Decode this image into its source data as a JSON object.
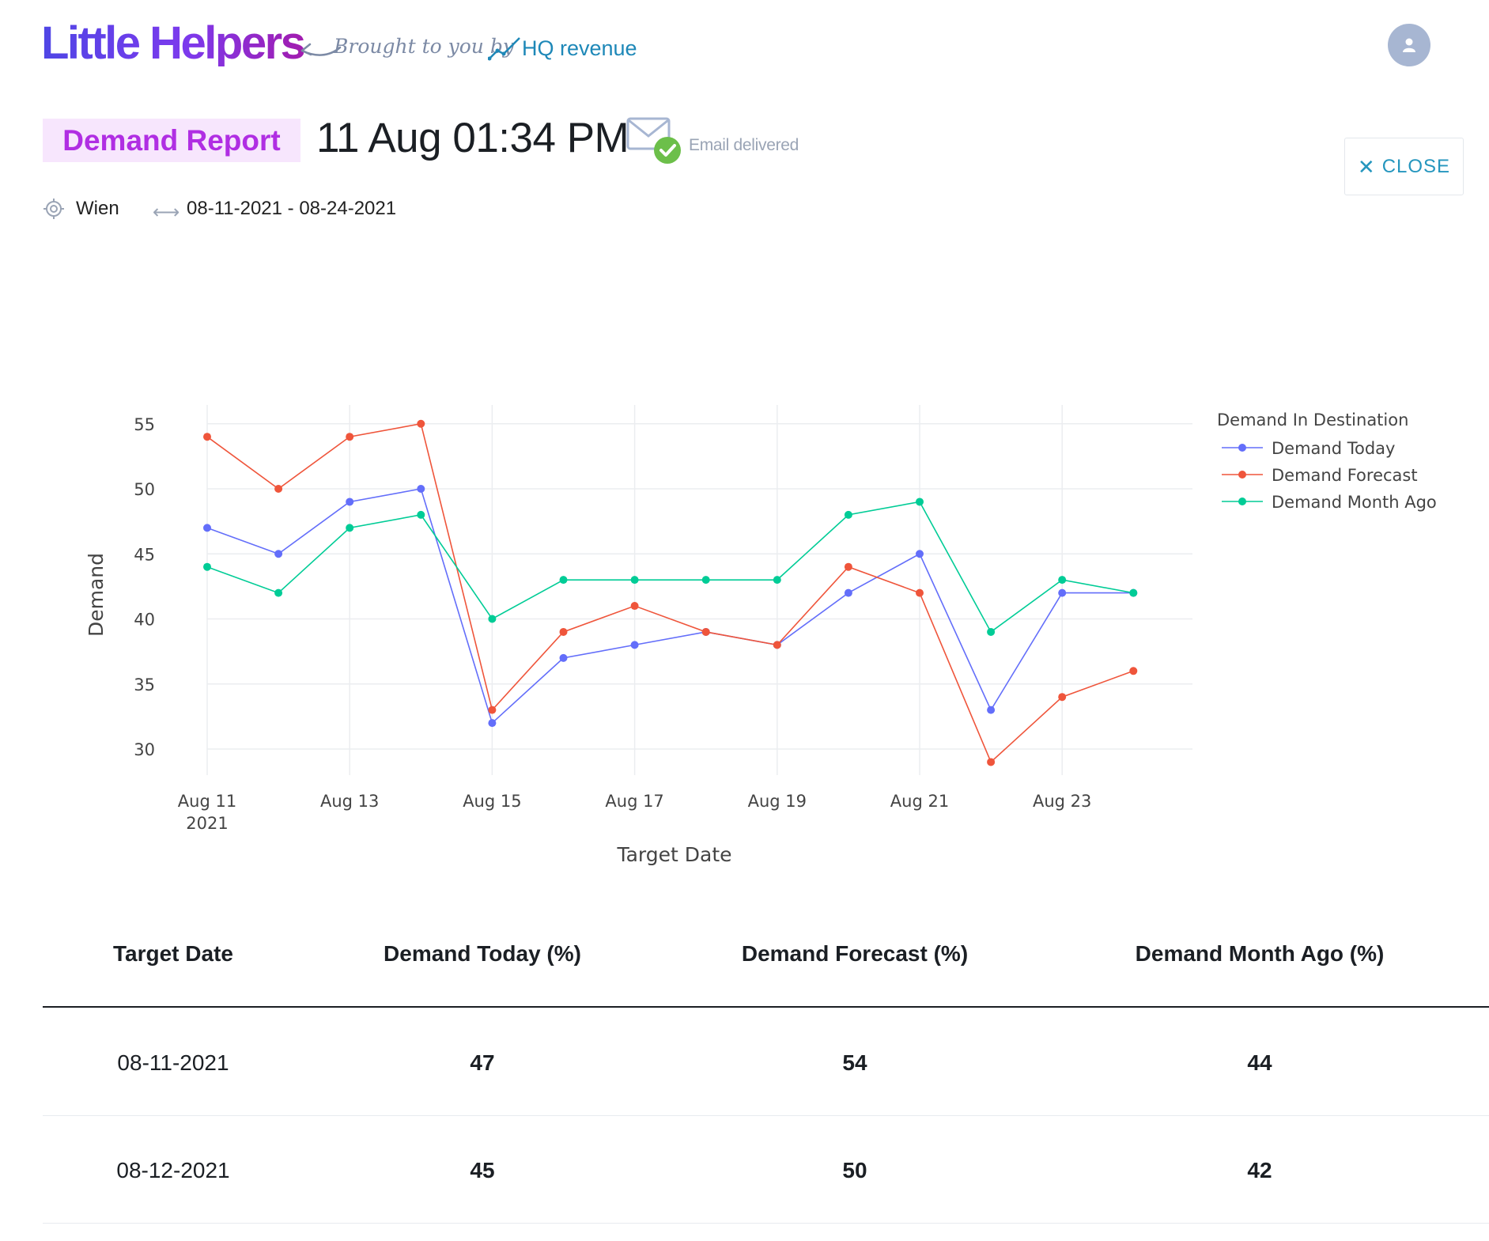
{
  "header": {
    "logo_text": "Little Helpers",
    "tagline": "Brought to you by",
    "partner": "HQ revenue",
    "avatar_icon": "user-icon"
  },
  "report": {
    "badge": "Demand Report",
    "timestamp": "11 Aug 01:34 PM",
    "email_icon": "envelope-check-icon",
    "email_status": "Email delivered",
    "close_label": "CLOSE",
    "location": "Wien",
    "date_range": "08-11-2021 - 08-24-2021"
  },
  "colors": {
    "today": "#636efa",
    "forecast": "#ef553b",
    "month_ago": "#00cc96",
    "accent": "#2596be",
    "badge_bg": "#f7e6fd",
    "badge_text": "#b02ee3"
  },
  "chart_data": {
    "type": "line",
    "xlabel": "Target Date",
    "ylabel": "Demand",
    "legend_title": "Demand In Destination",
    "legend_position": "top-right",
    "grid": true,
    "x": [
      "2021-08-11",
      "2021-08-12",
      "2021-08-13",
      "2021-08-14",
      "2021-08-15",
      "2021-08-16",
      "2021-08-17",
      "2021-08-18",
      "2021-08-19",
      "2021-08-20",
      "2021-08-21",
      "2021-08-22",
      "2021-08-23",
      "2021-08-24"
    ],
    "x_ticks": [
      {
        "date": "2021-08-11",
        "label": "Aug 11",
        "sub": "2021"
      },
      {
        "date": "2021-08-13",
        "label": "Aug 13",
        "sub": ""
      },
      {
        "date": "2021-08-15",
        "label": "Aug 15",
        "sub": ""
      },
      {
        "date": "2021-08-17",
        "label": "Aug 17",
        "sub": ""
      },
      {
        "date": "2021-08-19",
        "label": "Aug 19",
        "sub": ""
      },
      {
        "date": "2021-08-21",
        "label": "Aug 21",
        "sub": ""
      },
      {
        "date": "2021-08-23",
        "label": "Aug 23",
        "sub": ""
      }
    ],
    "y_ticks": [
      30,
      35,
      40,
      45,
      50,
      55
    ],
    "ylim": [
      28,
      56.7
    ],
    "series": [
      {
        "name": "Demand Today",
        "color": "#636efa",
        "values": [
          47,
          45,
          49,
          50,
          32,
          37,
          38,
          39,
          38,
          42,
          45,
          33,
          42,
          42
        ]
      },
      {
        "name": "Demand Forecast",
        "color": "#ef553b",
        "values": [
          54,
          50,
          54,
          55,
          33,
          39,
          41,
          39,
          38,
          44,
          42,
          29,
          34,
          36
        ]
      },
      {
        "name": "Demand Month Ago",
        "color": "#00cc96",
        "values": [
          44,
          42,
          47,
          48,
          40,
          43,
          43,
          43,
          43,
          48,
          49,
          39,
          43,
          42
        ]
      }
    ]
  },
  "table": {
    "headers": [
      "Target Date",
      "Demand Today (%)",
      "Demand Forecast (%)",
      "Demand Month Ago (%)"
    ],
    "rows": [
      [
        "08-11-2021",
        "47",
        "54",
        "44"
      ],
      [
        "08-12-2021",
        "45",
        "50",
        "42"
      ]
    ]
  }
}
